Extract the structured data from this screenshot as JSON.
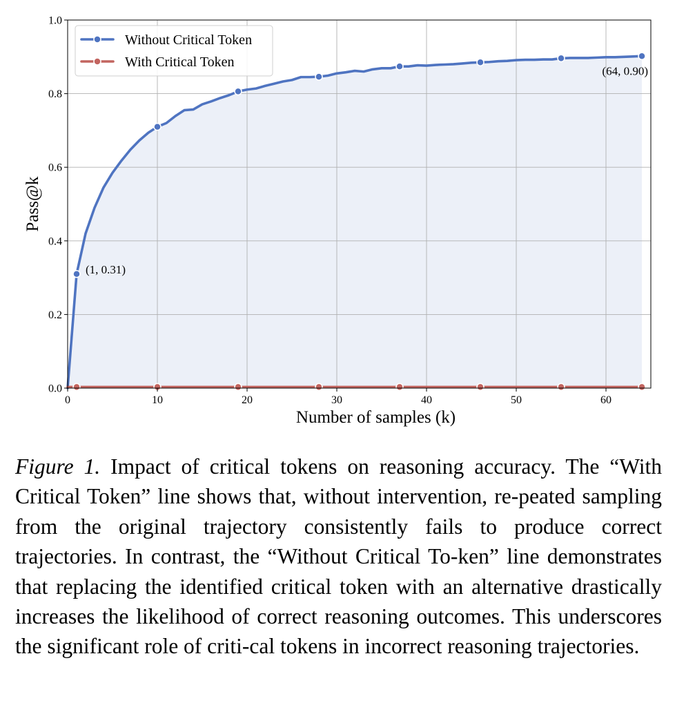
{
  "chart_data": {
    "type": "line",
    "xlabel": "Number of samples (k)",
    "ylabel": "Pass@k",
    "xlim": [
      0,
      65
    ],
    "ylim": [
      0.0,
      1.0
    ],
    "x_ticks": [
      "0",
      "10",
      "20",
      "30",
      "40",
      "50",
      "60"
    ],
    "y_ticks": [
      "0.0",
      "0.2",
      "0.4",
      "0.6",
      "0.8",
      "1.0"
    ],
    "grid": true,
    "legend_position": "upper-left",
    "series": [
      {
        "name": "Without Critical Token",
        "color": "#4f74c1",
        "fill": true,
        "x": [
          0,
          1,
          2,
          3,
          4,
          5,
          6,
          7,
          8,
          9,
          10,
          11,
          12,
          13,
          14,
          15,
          16,
          17,
          18,
          19,
          20,
          21,
          22,
          23,
          24,
          25,
          26,
          27,
          28,
          29,
          30,
          31,
          32,
          33,
          34,
          35,
          36,
          37,
          38,
          39,
          40,
          41,
          42,
          43,
          44,
          45,
          46,
          47,
          48,
          49,
          50,
          51,
          52,
          53,
          54,
          55,
          56,
          57,
          58,
          59,
          60,
          61,
          62,
          63,
          64
        ],
        "values": [
          0.0,
          0.31,
          0.42,
          0.49,
          0.545,
          0.585,
          0.618,
          0.648,
          0.673,
          0.694,
          0.71,
          0.72,
          0.739,
          0.755,
          0.757,
          0.771,
          0.779,
          0.788,
          0.796,
          0.806,
          0.811,
          0.814,
          0.821,
          0.827,
          0.833,
          0.837,
          0.845,
          0.845,
          0.846,
          0.849,
          0.855,
          0.858,
          0.862,
          0.86,
          0.866,
          0.869,
          0.869,
          0.874,
          0.874,
          0.877,
          0.876,
          0.878,
          0.879,
          0.88,
          0.882,
          0.884,
          0.885,
          0.886,
          0.888,
          0.889,
          0.891,
          0.892,
          0.892,
          0.893,
          0.893,
          0.896,
          0.897,
          0.897,
          0.897,
          0.898,
          0.899,
          0.899,
          0.9,
          0.901,
          0.902
        ],
        "marker_x": [
          1,
          10,
          19,
          28,
          37,
          46,
          55,
          64
        ]
      },
      {
        "name": "With Critical Token",
        "color": "#c2645f",
        "fill": false,
        "x": [
          0,
          64
        ],
        "values": [
          0.003,
          0.003
        ],
        "marker_x": [
          1,
          10,
          19,
          28,
          37,
          46,
          55,
          64
        ]
      }
    ],
    "annotations": [
      {
        "text": "(1, 0.31)",
        "x": 1,
        "y": 0.31
      },
      {
        "text": "(64, 0.90)",
        "x": 64,
        "y": 0.9
      }
    ]
  },
  "caption": {
    "label": "Figure 1.",
    "text": "Impact of critical tokens on reasoning accuracy. The “With Critical Token” line shows that, without intervention, re-peated sampling from the original trajectory consistently fails to produce correct trajectories. In contrast, the “Without Critical To-ken” line demonstrates that replacing the identified critical token with an alternative drastically increases the likelihood of correct reasoning outcomes. This underscores the significant role of criti-cal tokens in incorrect reasoning trajectories."
  }
}
